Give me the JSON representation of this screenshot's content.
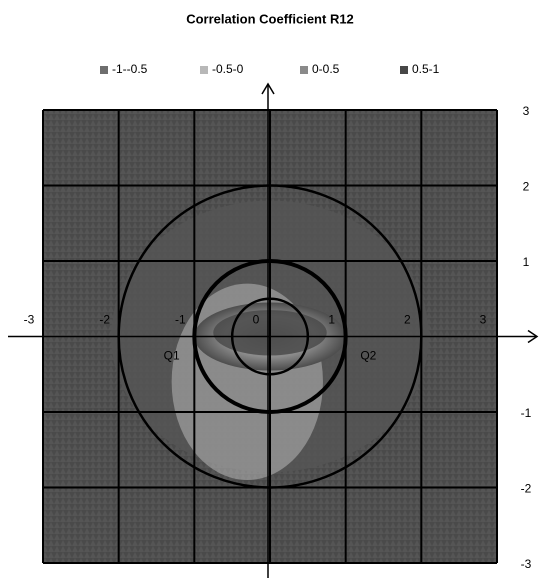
{
  "chart_data": {
    "type": "contour",
    "title": "Correlation Coefficient R12",
    "series": [
      {
        "name": "-1--0.5",
        "color": "#6e6e6e"
      },
      {
        "name": "-0.5-0",
        "color": "#b8b8b8"
      },
      {
        "name": "0-0.5",
        "color": "#8a8a8a"
      },
      {
        "name": "0.5-1",
        "color": "#474747"
      }
    ],
    "xlim": [
      -3,
      3
    ],
    "xticks": [
      -3,
      -2,
      -1,
      0,
      1,
      2,
      3
    ],
    "ylim": [
      -3,
      3
    ],
    "yticks": [
      -3,
      -2,
      -1,
      1,
      2,
      3
    ],
    "circles": [
      0.5,
      1,
      2
    ],
    "annotations": [
      "Q1",
      "Q2"
    ],
    "grid": true
  }
}
